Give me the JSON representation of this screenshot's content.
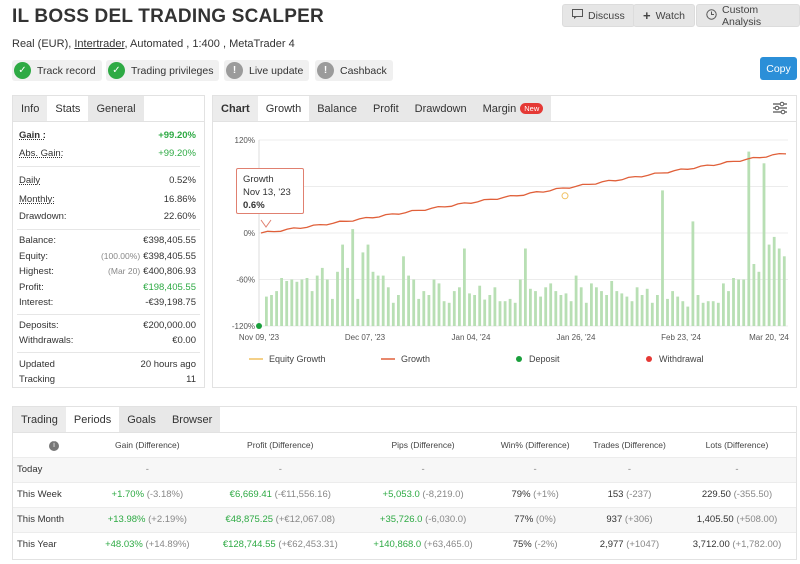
{
  "header": {
    "title": "IL BOSS DEL TRADING SCALPER",
    "discuss": "Discuss",
    "watch": "Watch",
    "custom_analysis": "Custom Analysis",
    "sub_prefix": "Real (EUR),",
    "sub_broker": "Intertrader",
    "sub_suffix": ", Automated , 1:400 , MetaTrader 4",
    "copy": "Copy"
  },
  "badges": [
    {
      "label": "Track record",
      "status": "ok"
    },
    {
      "label": "Trading privileges",
      "status": "ok"
    },
    {
      "label": "Live update",
      "status": "na"
    },
    {
      "label": "Cashback",
      "status": "na"
    }
  ],
  "info_tabs": [
    "Info",
    "Stats",
    "General"
  ],
  "info": {
    "gain_l": "Gain :",
    "gain_v": "+99.20%",
    "absgain_l": "Abs. Gain:",
    "absgain_v": "+99.20%",
    "daily_l": "Daily",
    "daily_v": "0.52%",
    "monthly_l": "Monthly:",
    "monthly_v": "16.86%",
    "drawdown_l": "Drawdown:",
    "drawdown_v": "22.60%",
    "balance_l": "Balance:",
    "balance_v": "€398,405.55",
    "equity_l": "Equity:",
    "equity_sub": "(100.00%)",
    "equity_v": "€398,405.55",
    "highest_l": "Highest:",
    "highest_sub": "(Mar 20)",
    "highest_v": "€400,806.93",
    "profit_l": "Profit:",
    "profit_v": "€198,405.55",
    "interest_l": "Interest:",
    "interest_v": "-€39,198.75",
    "deposits_l": "Deposits:",
    "deposits_v": "€200,000.00",
    "withdrawals_l": "Withdrawals:",
    "withdrawals_v": "€0.00",
    "updated_l": "Updated",
    "updated_v": "20 hours ago",
    "tracking_l": "Tracking",
    "tracking_v": "11"
  },
  "chart_tabs": [
    "Chart",
    "Growth",
    "Balance",
    "Profit",
    "Drawdown",
    "Margin"
  ],
  "new_badge": "New",
  "chart_data": {
    "type": "bar+line",
    "y_ticks": [
      "120%",
      "60%",
      "0%",
      "-60%",
      "-120%"
    ],
    "x_ticks": [
      "Nov 09, '23",
      "Dec 07, '23",
      "Jan 04, '24",
      "Jan 26, '24",
      "Feb 23, '24",
      "Mar 20, '24"
    ],
    "ylim": [
      -120,
      120
    ],
    "growth_line": {
      "name": "Growth",
      "start": 0,
      "end": 103
    },
    "bars_daily_percent": [
      -82,
      -80,
      -75,
      -58,
      -62,
      -60,
      -63,
      -60,
      -58,
      -75,
      -55,
      -45,
      -60,
      -85,
      -50,
      -15,
      -45,
      5,
      -85,
      -25,
      -15,
      -50,
      -55,
      -55,
      -70,
      -90,
      -80,
      -30,
      -55,
      -60,
      -85,
      -75,
      -80,
      -60,
      -65,
      -88,
      -90,
      -75,
      -70,
      -20,
      -78,
      -80,
      -68,
      -86,
      -80,
      -70,
      -88,
      -88,
      -85,
      -90,
      -60,
      -20,
      -72,
      -75,
      -82,
      -70,
      -65,
      -75,
      -80,
      -78,
      -88,
      -55,
      -70,
      -90,
      -65,
      -70,
      -75,
      -80,
      -62,
      -75,
      -78,
      -82,
      -88,
      -70,
      -80,
      -72,
      -90,
      -80,
      55,
      -85,
      -75,
      -82,
      -88,
      -95,
      15,
      -80,
      -90,
      -88,
      -88,
      -90,
      -65,
      -75,
      -58,
      -60,
      -60,
      105,
      -40,
      -50,
      90,
      -15,
      -5,
      -20,
      -30
    ],
    "tooltip": {
      "label": "Growth",
      "date": "Nov 13, '23",
      "value": "0.6%"
    },
    "legend": [
      "Equity Growth",
      "Growth",
      "Deposit",
      "Withdrawal"
    ]
  },
  "colors": {
    "green": "#2eaa44",
    "growth": "#e0603a",
    "equity": "#f0c060",
    "bar": "#b8dfb4",
    "deposit": "#1a9f3c",
    "withdrawal": "#e53935"
  },
  "bottom_tabs": [
    "Trading",
    "Periods",
    "Goals",
    "Browser"
  ],
  "periods": {
    "headers": [
      "Gain (Difference)",
      "Profit (Difference)",
      "Pips (Difference)",
      "Win% (Difference)",
      "Trades (Difference)",
      "Lots (Difference)"
    ],
    "rows": [
      {
        "label": "Today",
        "gain": "-",
        "gain_d": "",
        "profit": "-",
        "profit_d": "",
        "pips": "-",
        "pips_d": "",
        "win": "-",
        "win_d": "",
        "trades": "-",
        "trades_d": "",
        "lots": "-",
        "lots_d": ""
      },
      {
        "label": "This Week",
        "gain": "+1.70%",
        "gain_d": "(-3.18%)",
        "profit": "€6,669.41",
        "profit_d": "(-€11,556.16)",
        "pips": "+5,053.0",
        "pips_d": "(-8,219.0)",
        "win": "79%",
        "win_d": "(+1%)",
        "trades": "153",
        "trades_d": "(-237)",
        "lots": "229.50",
        "lots_d": "(-355.50)"
      },
      {
        "label": "This Month",
        "gain": "+13.98%",
        "gain_d": "(+2.19%)",
        "profit": "€48,875.25",
        "profit_d": "(+€12,067.08)",
        "pips": "+35,726.0",
        "pips_d": "(-6,030.0)",
        "win": "77%",
        "win_d": "(0%)",
        "trades": "937",
        "trades_d": "(+306)",
        "lots": "1,405.50",
        "lots_d": "(+508.00)"
      },
      {
        "label": "This Year",
        "gain": "+48.03%",
        "gain_d": "(+14.89%)",
        "profit": "€128,744.55",
        "profit_d": "(+€62,453.31)",
        "pips": "+140,868.0",
        "pips_d": "(+63,465.0)",
        "win": "75%",
        "win_d": "(-2%)",
        "trades": "2,977",
        "trades_d": "(+1047)",
        "lots": "3,712.00",
        "lots_d": "(+1,782.00)"
      }
    ]
  }
}
